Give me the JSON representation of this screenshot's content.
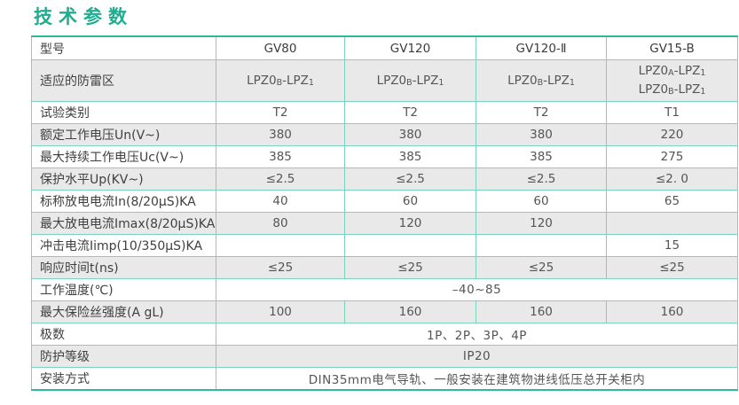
{
  "page": {
    "title": "技术参数"
  },
  "colors": {
    "title_teal": "#1fad90",
    "border_thick_teal": "#2fb89d",
    "border_thin_teal": "#7ad2bf",
    "row_gray": "#e9e9e9"
  },
  "table": {
    "header": {
      "label": "型号",
      "models": [
        "GV80",
        "GV120",
        "GV120-Ⅱ",
        "GV15-B"
      ]
    },
    "lpz": {
      "a": [
        {
          "t": "LPZ0"
        },
        {
          "t": "A",
          "sub": true
        },
        {
          "t": "-LPZ"
        },
        {
          "t": "1",
          "sub": true
        }
      ],
      "b": [
        {
          "t": "LPZ0"
        },
        {
          "t": "B",
          "sub": true
        },
        {
          "t": "-LPZ"
        },
        {
          "t": "1",
          "sub": true
        }
      ]
    },
    "rows": [
      {
        "label": "适应的防雷区"
      },
      {
        "label": "试验类别",
        "values": [
          "T2",
          "T2",
          "T2",
          "T1"
        ]
      },
      {
        "label": "额定工作电压Un(V~)",
        "values": [
          "380",
          "380",
          "380",
          "220"
        ]
      },
      {
        "label": "最大持续工作电压Uc(V~)",
        "values": [
          "385",
          "385",
          "385",
          "275"
        ]
      },
      {
        "label": "保护水平Up(KV~)",
        "values": [
          "≤2.5",
          "≤2.5",
          "≤2.5",
          "≤2. 0"
        ]
      },
      {
        "label": "标称放电电流In(8/20μS)KA",
        "values": [
          "40",
          "60",
          "60",
          "65"
        ]
      },
      {
        "label": "最大放电电流Imax(8/20μS)KA",
        "values": [
          "80",
          "120",
          "120",
          ""
        ]
      },
      {
        "label": "冲击电流Iimp(10/350μS)KA",
        "values": [
          "",
          "",
          "",
          "15"
        ]
      },
      {
        "label": "响应时间t(ns)",
        "values": [
          "≤25",
          "≤25",
          "≤25",
          "≤25"
        ]
      },
      {
        "label": "工作温度(℃)",
        "span_value": "–40~85"
      },
      {
        "label": "最大保险丝强度(A gL)",
        "values": [
          "100",
          "160",
          "160",
          "160"
        ]
      },
      {
        "label": "极数",
        "span_value": "1P、2P、3P、4P"
      },
      {
        "label": "防护等级",
        "span_value": "IP20"
      },
      {
        "label": "安装方式",
        "span_value": "DIN35mm电气导轨、一般安装在建筑物进线低压总开关柜内"
      }
    ]
  }
}
